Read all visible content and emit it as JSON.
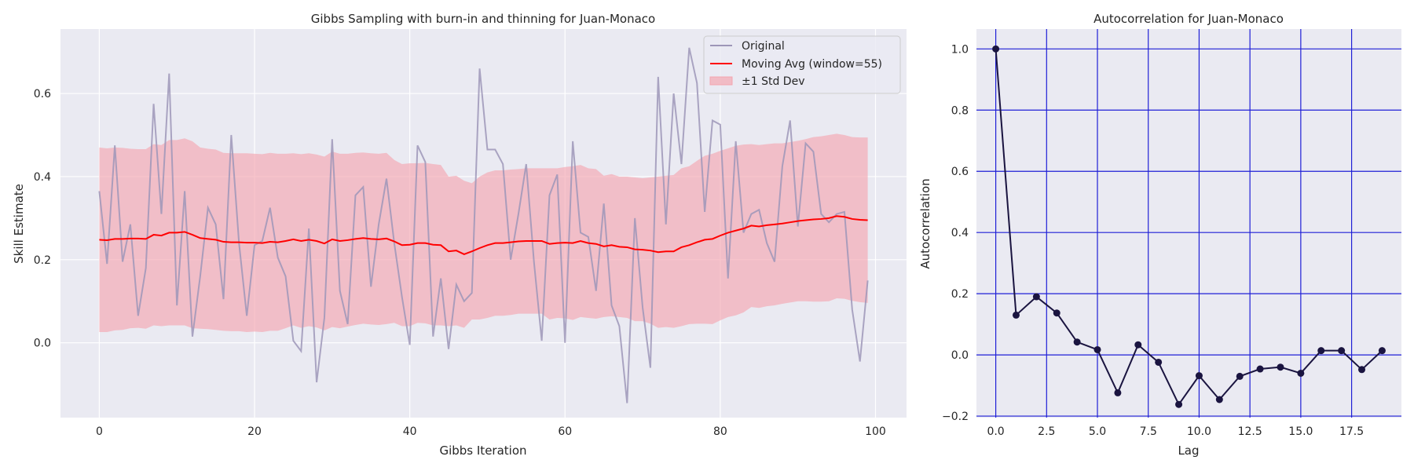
{
  "chart_data": [
    {
      "type": "line",
      "title": "Gibbs Sampling with burn-in and thinning for Juan-Monaco",
      "xlabel": "Gibbs Iteration",
      "ylabel": "Skill Estimate",
      "xlim": [
        -5,
        104
      ],
      "ylim": [
        -0.18,
        0.755
      ],
      "xticks": [
        0,
        20,
        40,
        60,
        80,
        100
      ],
      "yticks": [
        0.0,
        0.2,
        0.4,
        0.6
      ],
      "grid": true,
      "legend_position": "top-right",
      "colors": {
        "background": "#eaeaf2",
        "original": "#9d96b8",
        "moving_avg": "#ff0000",
        "band": "#f4a6b0"
      },
      "x": [
        0,
        1,
        2,
        3,
        4,
        5,
        6,
        7,
        8,
        9,
        10,
        11,
        12,
        13,
        14,
        15,
        16,
        17,
        18,
        19,
        20,
        21,
        22,
        23,
        24,
        25,
        26,
        27,
        28,
        29,
        30,
        31,
        32,
        33,
        34,
        35,
        36,
        37,
        38,
        39,
        40,
        41,
        42,
        43,
        44,
        45,
        46,
        47,
        48,
        49,
        50,
        51,
        52,
        53,
        54,
        55,
        56,
        57,
        58,
        59,
        60,
        61,
        62,
        63,
        64,
        65,
        66,
        67,
        68,
        69,
        70,
        71,
        72,
        73,
        74,
        75,
        76,
        77,
        78,
        79,
        80,
        81,
        82,
        83,
        84,
        85,
        86,
        87,
        88,
        89,
        90,
        91,
        92,
        93,
        94,
        95,
        96,
        97,
        98,
        99
      ],
      "series": [
        {
          "name": "Original",
          "values": [
            0.365,
            0.19,
            0.475,
            0.195,
            0.285,
            0.065,
            0.18,
            0.575,
            0.31,
            0.648,
            0.09,
            0.365,
            0.015,
            0.16,
            0.325,
            0.285,
            0.105,
            0.5,
            0.24,
            0.065,
            0.235,
            0.245,
            0.325,
            0.205,
            0.16,
            0.005,
            -0.02,
            0.275,
            -0.095,
            0.06,
            0.49,
            0.125,
            0.045,
            0.355,
            0.375,
            0.135,
            0.285,
            0.395,
            0.24,
            0.11,
            -0.005,
            0.475,
            0.435,
            0.015,
            0.155,
            -0.015,
            0.14,
            0.1,
            0.12,
            0.66,
            0.465,
            0.465,
            0.43,
            0.2,
            0.31,
            0.43,
            0.195,
            0.005,
            0.355,
            0.405,
            0.0,
            0.485,
            0.265,
            0.255,
            0.125,
            0.335,
            0.09,
            0.04,
            -0.145,
            0.3,
            0.085,
            -0.06,
            0.64,
            0.285,
            0.6,
            0.43,
            0.71,
            0.625,
            0.315,
            0.535,
            0.525,
            0.155,
            0.485,
            0.265,
            0.31,
            0.32,
            0.24,
            0.195,
            0.425,
            0.535,
            0.28,
            0.48,
            0.46,
            0.31,
            0.29,
            0.31,
            0.315,
            0.08,
            -0.045,
            0.15
          ]
        },
        {
          "name": "Moving Avg (window=55)",
          "values": [
            0.248,
            0.247,
            0.25,
            0.25,
            0.251,
            0.251,
            0.25,
            0.26,
            0.258,
            0.265,
            0.265,
            0.267,
            0.26,
            0.252,
            0.25,
            0.248,
            0.243,
            0.242,
            0.242,
            0.241,
            0.241,
            0.24,
            0.243,
            0.242,
            0.245,
            0.249,
            0.245,
            0.248,
            0.245,
            0.239,
            0.249,
            0.245,
            0.247,
            0.25,
            0.252,
            0.25,
            0.249,
            0.251,
            0.244,
            0.235,
            0.236,
            0.24,
            0.24,
            0.236,
            0.235,
            0.22,
            0.222,
            0.213,
            0.22,
            0.228,
            0.235,
            0.24,
            0.24,
            0.242,
            0.244,
            0.245,
            0.245,
            0.245,
            0.238,
            0.24,
            0.241,
            0.24,
            0.245,
            0.24,
            0.238,
            0.232,
            0.235,
            0.231,
            0.23,
            0.225,
            0.224,
            0.222,
            0.218,
            0.22,
            0.22,
            0.23,
            0.235,
            0.242,
            0.248,
            0.25,
            0.258,
            0.265,
            0.27,
            0.275,
            0.282,
            0.28,
            0.283,
            0.285,
            0.287,
            0.29,
            0.293,
            0.295,
            0.297,
            0.298,
            0.3,
            0.305,
            0.303,
            0.298,
            0.296,
            0.295
          ]
        },
        {
          "name": "±1 Std Dev",
          "upper": [
            0.47,
            0.468,
            0.47,
            0.469,
            0.467,
            0.466,
            0.466,
            0.478,
            0.476,
            0.488,
            0.488,
            0.492,
            0.485,
            0.47,
            0.467,
            0.465,
            0.457,
            0.456,
            0.456,
            0.456,
            0.455,
            0.454,
            0.457,
            0.455,
            0.455,
            0.456,
            0.454,
            0.456,
            0.453,
            0.448,
            0.46,
            0.455,
            0.455,
            0.457,
            0.458,
            0.456,
            0.455,
            0.457,
            0.44,
            0.43,
            0.432,
            0.432,
            0.433,
            0.43,
            0.428,
            0.4,
            0.402,
            0.39,
            0.384,
            0.4,
            0.41,
            0.415,
            0.415,
            0.417,
            0.418,
            0.42,
            0.42,
            0.42,
            0.42,
            0.42,
            0.423,
            0.425,
            0.428,
            0.42,
            0.418,
            0.402,
            0.406,
            0.4,
            0.4,
            0.398,
            0.396,
            0.398,
            0.4,
            0.402,
            0.404,
            0.42,
            0.425,
            0.438,
            0.45,
            0.455,
            0.462,
            0.468,
            0.474,
            0.477,
            0.478,
            0.476,
            0.478,
            0.48,
            0.48,
            0.483,
            0.486,
            0.49,
            0.495,
            0.497,
            0.5,
            0.503,
            0.5,
            0.495,
            0.494,
            0.494
          ],
          "lower": [
            0.026,
            0.026,
            0.03,
            0.031,
            0.035,
            0.036,
            0.034,
            0.042,
            0.04,
            0.042,
            0.042,
            0.042,
            0.035,
            0.034,
            0.033,
            0.031,
            0.029,
            0.028,
            0.028,
            0.026,
            0.027,
            0.026,
            0.029,
            0.029,
            0.035,
            0.042,
            0.036,
            0.04,
            0.037,
            0.03,
            0.038,
            0.035,
            0.039,
            0.043,
            0.046,
            0.044,
            0.043,
            0.045,
            0.048,
            0.04,
            0.04,
            0.048,
            0.047,
            0.042,
            0.042,
            0.04,
            0.042,
            0.036,
            0.056,
            0.056,
            0.06,
            0.065,
            0.065,
            0.067,
            0.07,
            0.07,
            0.07,
            0.07,
            0.056,
            0.06,
            0.059,
            0.055,
            0.062,
            0.06,
            0.058,
            0.062,
            0.064,
            0.062,
            0.06,
            0.052,
            0.052,
            0.046,
            0.036,
            0.038,
            0.036,
            0.04,
            0.045,
            0.046,
            0.046,
            0.045,
            0.054,
            0.062,
            0.066,
            0.073,
            0.086,
            0.084,
            0.088,
            0.09,
            0.094,
            0.097,
            0.1,
            0.1,
            0.099,
            0.099,
            0.1,
            0.107,
            0.106,
            0.101,
            0.098,
            0.096
          ]
        }
      ]
    },
    {
      "type": "line",
      "title": "Autocorrelation for Juan-Monaco",
      "xlabel": "Lag",
      "ylabel": "Autocorrelation",
      "xlim": [
        -0.95,
        19.95
      ],
      "ylim": [
        -0.205,
        1.065
      ],
      "xticks": [
        0.0,
        2.5,
        5.0,
        7.5,
        10.0,
        12.5,
        15.0,
        17.5
      ],
      "yticks": [
        -0.2,
        0.0,
        0.2,
        0.4,
        0.6,
        0.8,
        1.0
      ],
      "grid": true,
      "colors": {
        "background": "#eaeaf2",
        "grid": "#1f1fd6",
        "line": "#1a1440"
      },
      "x": [
        0,
        1,
        2,
        3,
        4,
        5,
        6,
        7,
        8,
        9,
        10,
        11,
        12,
        13,
        14,
        15,
        16,
        17,
        18,
        19
      ],
      "series": [
        {
          "values": [
            1.0,
            0.13,
            0.19,
            0.137,
            0.042,
            0.017,
            -0.124,
            0.033,
            -0.024,
            -0.162,
            -0.068,
            -0.146,
            -0.07,
            -0.046,
            -0.04,
            -0.06,
            0.014,
            0.014,
            -0.048,
            0.014
          ]
        }
      ]
    }
  ]
}
